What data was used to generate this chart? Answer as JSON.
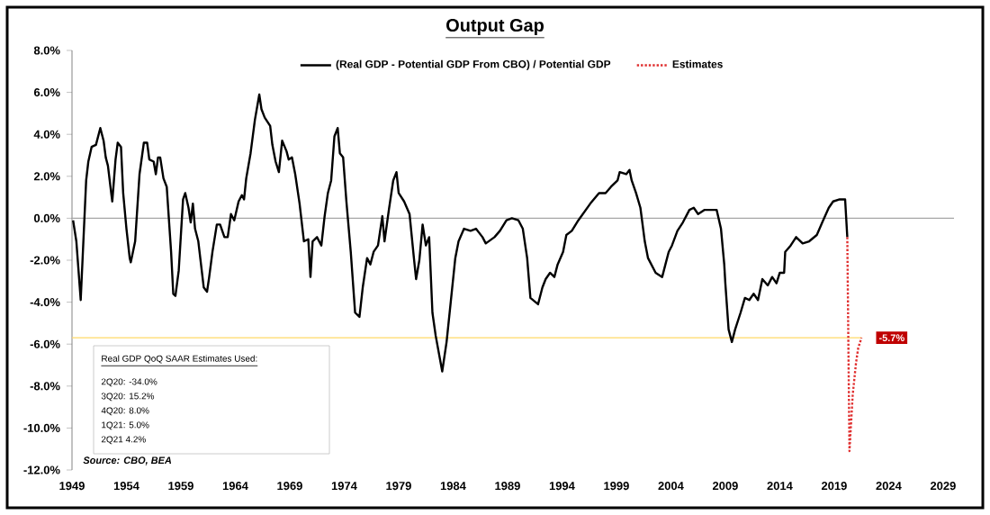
{
  "chart_data": {
    "type": "line",
    "title": "Output Gap",
    "xlim": [
      1949,
      2030
    ],
    "xticks": [
      1949,
      1954,
      1959,
      1964,
      1969,
      1974,
      1979,
      1984,
      1989,
      1994,
      1999,
      2004,
      2009,
      2014,
      2019,
      2024,
      2029
    ],
    "ylim": [
      -12,
      8
    ],
    "yticks": [
      {
        "value": -12,
        "label": "-12.0%"
      },
      {
        "value": -10,
        "label": "-10.0%"
      },
      {
        "value": -8,
        "label": "-8.0%"
      },
      {
        "value": -6,
        "label": "-6.0%"
      },
      {
        "value": -4,
        "label": "-4.0%"
      },
      {
        "value": -2,
        "label": "-2.0%"
      },
      {
        "value": 0,
        "label": "0.0%"
      },
      {
        "value": 2,
        "label": "2.0%"
      },
      {
        "value": 4,
        "label": "4.0%"
      },
      {
        "value": 6,
        "label": "6.0%"
      },
      {
        "value": 8,
        "label": "8.0%"
      }
    ],
    "legend": "top",
    "series": [
      {
        "name": "(Real GDP - Potential GDP From CBO) / Potential GDP",
        "color": "#000000",
        "line_style": "solid",
        "x": [
          1949.1,
          1949.4,
          1949.8,
          1950.3,
          1950.5,
          1950.8,
          1951.2,
          1951.6,
          1951.9,
          1952.1,
          1952.3,
          1952.6,
          1952.7,
          1953.0,
          1953.2,
          1953.5,
          1953.7,
          1954.0,
          1954.3,
          1954.4,
          1954.8,
          1955.2,
          1955.6,
          1955.9,
          1956.1,
          1956.5,
          1956.7,
          1956.9,
          1957.1,
          1957.4,
          1957.7,
          1958.1,
          1958.3,
          1958.5,
          1958.8,
          1959.2,
          1959.4,
          1959.7,
          1959.9,
          1960.1,
          1960.3,
          1960.6,
          1961.1,
          1961.4,
          1961.6,
          1961.9,
          1962.3,
          1962.6,
          1963.0,
          1963.3,
          1963.6,
          1963.9,
          1964.3,
          1964.6,
          1964.8,
          1965.0,
          1965.4,
          1965.8,
          1966.2,
          1966.4,
          1966.7,
          1967.2,
          1967.4,
          1967.7,
          1968.0,
          1968.3,
          1968.7,
          1968.9,
          1969.2,
          1969.5,
          1969.9,
          1970.3,
          1970.7,
          1970.9,
          1971.1,
          1971.5,
          1971.9,
          1972.2,
          1972.5,
          1972.8,
          1973.1,
          1973.4,
          1973.6,
          1973.9,
          1974.2,
          1974.6,
          1975.0,
          1975.4,
          1975.7,
          1976.1,
          1976.4,
          1976.7,
          1977.1,
          1977.5,
          1977.7,
          1978.1,
          1978.5,
          1978.8,
          1979.0,
          1979.5,
          1980.0,
          1980.4,
          1980.6,
          1980.9,
          1981.2,
          1981.5,
          1981.8,
          1982.1,
          1982.4,
          1983.0,
          1983.4,
          1983.8,
          1984.2,
          1984.5,
          1985.0,
          1985.6,
          1986.1,
          1986.7,
          1987.0,
          1987.8,
          1988.3,
          1988.9,
          1989.4,
          1990.0,
          1990.4,
          1990.8,
          1991.1,
          1991.8,
          1992.2,
          1992.5,
          1992.9,
          1993.3,
          1993.6,
          1994.1,
          1994.4,
          1994.9,
          1995.5,
          1996.6,
          1997.4,
          1998.0,
          1998.5,
          1999.1,
          1999.3,
          1999.9,
          2000.2,
          2000.4,
          2000.8,
          2001.2,
          2001.6,
          2001.9,
          2002.6,
          2003.2,
          2003.5,
          2003.8,
          2004.1,
          2004.6,
          2005.1,
          2005.7,
          2006.1,
          2006.5,
          2007.1,
          2007.8,
          2008.2,
          2008.6,
          2008.9,
          2009.0,
          2009.3,
          2009.6,
          2009.9,
          2010.4,
          2010.8,
          2011.2,
          2011.6,
          2012.0,
          2012.4,
          2012.9,
          2013.3,
          2013.7,
          2014.0,
          2014.4,
          2014.5,
          2015.0,
          2015.5,
          2016.1,
          2016.7,
          2017.4,
          2017.9,
          2018.5,
          2018.9,
          2019.5,
          2020.0,
          2020.2
        ],
        "values": [
          -0.1,
          -1.1,
          -3.9,
          1.8,
          2.7,
          3.4,
          3.5,
          4.3,
          3.7,
          2.9,
          2.5,
          1.2,
          0.8,
          2.8,
          3.6,
          3.4,
          1.2,
          -0.5,
          -1.9,
          -2.1,
          -1.1,
          2.1,
          3.6,
          3.6,
          2.8,
          2.7,
          2.1,
          2.9,
          2.9,
          1.9,
          1.5,
          -1.6,
          -3.6,
          -3.7,
          -2.5,
          0.9,
          1.2,
          0.5,
          -0.2,
          0.7,
          -0.5,
          -1.1,
          -3.3,
          -3.5,
          -2.8,
          -1.6,
          -0.3,
          -0.3,
          -0.9,
          -0.9,
          0.2,
          -0.1,
          0.8,
          1.1,
          0.9,
          1.9,
          3.1,
          4.7,
          5.9,
          5.2,
          4.8,
          4.4,
          3.5,
          2.7,
          2.2,
          3.7,
          3.2,
          2.8,
          2.9,
          2.1,
          0.7,
          -1.1,
          -1.0,
          -2.8,
          -1.1,
          -0.9,
          -1.3,
          0.1,
          1.2,
          1.8,
          3.9,
          4.3,
          3.1,
          2.9,
          0.8,
          -1.6,
          -4.5,
          -4.7,
          -3.3,
          -1.9,
          -2.2,
          -1.6,
          -1.3,
          0.1,
          -1.1,
          0.4,
          1.8,
          2.2,
          1.2,
          0.8,
          0.2,
          -1.9,
          -2.9,
          -2.0,
          -0.3,
          -1.3,
          -0.9,
          -4.5,
          -5.6,
          -7.3,
          -5.9,
          -3.9,
          -1.9,
          -1.1,
          -0.5,
          -0.6,
          -0.5,
          -0.9,
          -1.2,
          -0.9,
          -0.6,
          -0.1,
          0.0,
          -0.1,
          -0.5,
          -1.9,
          -3.8,
          -4.1,
          -3.3,
          -2.9,
          -2.6,
          -2.8,
          -2.2,
          -1.6,
          -0.8,
          -0.6,
          -0.1,
          0.7,
          1.2,
          1.2,
          1.5,
          1.8,
          2.2,
          2.1,
          2.3,
          1.8,
          1.2,
          0.5,
          -1.1,
          -1.9,
          -2.6,
          -2.8,
          -2.2,
          -1.6,
          -1.3,
          -0.6,
          -0.2,
          0.4,
          0.5,
          0.2,
          0.4,
          0.4,
          0.4,
          -0.5,
          -2.2,
          -3.1,
          -5.3,
          -5.9,
          -5.3,
          -4.5,
          -3.8,
          -3.9,
          -3.6,
          -3.9,
          -2.9,
          -3.2,
          -2.8,
          -3.1,
          -2.6,
          -2.6,
          -1.6,
          -1.3,
          -0.9,
          -1.2,
          -1.1,
          -0.8,
          -0.2,
          0.5,
          0.8,
          0.9,
          0.9,
          -0.9
        ]
      },
      {
        "name": "Estimates",
        "color": "#e03030",
        "line_style": "dotted",
        "x": [
          2020.2,
          2020.4,
          2020.7,
          2021.0,
          2021.2,
          2021.5
        ],
        "values": [
          -0.9,
          -11.1,
          -8.4,
          -6.9,
          -6.2,
          -5.7
        ]
      }
    ],
    "ref_lines": [
      {
        "axis": "y",
        "value": 0,
        "color": "#a6a6a6"
      },
      {
        "axis": "y",
        "value": -5.7,
        "label": "-5.7%",
        "color": "#ffd966"
      }
    ],
    "annotations": [
      "Real GDP QoQ SAAR Estimates Used:",
      "2Q20: -34.0%",
      "3Q20: 15.2%",
      "4Q20: 8.0%",
      "1Q21: 5.0%",
      "2Q21 4.2%",
      "Source: CBO, BEA"
    ]
  }
}
